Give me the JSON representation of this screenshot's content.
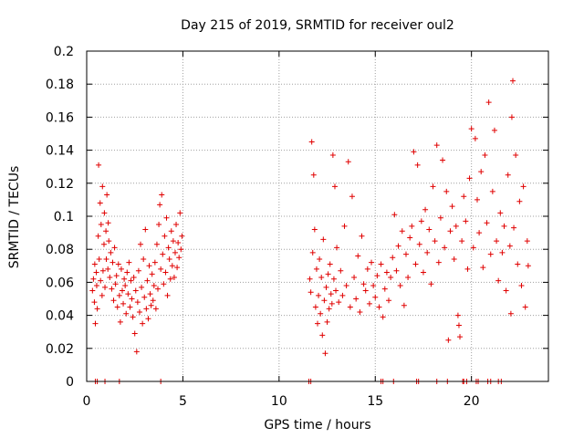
{
  "chart_data": {
    "type": "scatter",
    "title": "Day 215 of 2019, SRMTID for receiver oul2",
    "xlabel": "GPS time / hours",
    "ylabel": "SRMTID / TECUs",
    "xlim": [
      0,
      24
    ],
    "ylim": [
      0,
      0.2
    ],
    "xticks": [
      0,
      5,
      10,
      15,
      20
    ],
    "xtick_labels": [
      "0",
      "5",
      "10",
      "15",
      "20"
    ],
    "yticks": [
      0,
      0.02,
      0.04,
      0.06,
      0.08,
      0.1,
      0.12,
      0.14,
      0.16,
      0.18,
      0.2
    ],
    "ytick_labels": [
      "0",
      "0.02",
      "0.04",
      "0.06",
      "0.08",
      "0.1",
      "0.12",
      "0.14",
      "0.16",
      "0.18",
      "0.2"
    ],
    "grid": true,
    "marker": "+",
    "color": "#e00000",
    "series": [
      {
        "name": "SRMTID",
        "points": [
          [
            0.3,
            0.055
          ],
          [
            0.35,
            0.062
          ],
          [
            0.4,
            0.048
          ],
          [
            0.42,
            0.071
          ],
          [
            0.45,
            0.035
          ],
          [
            0.5,
            0.066
          ],
          [
            0.52,
            0.058
          ],
          [
            0.55,
            0.044
          ],
          [
            0.6,
            0.088
          ],
          [
            0.62,
            0.131
          ],
          [
            0.65,
            0.074
          ],
          [
            0.7,
            0.108
          ],
          [
            0.72,
            0.061
          ],
          [
            0.75,
            0.095
          ],
          [
            0.8,
            0.052
          ],
          [
            0.82,
            0.118
          ],
          [
            0.85,
            0.067
          ],
          [
            0.9,
            0.083
          ],
          [
            0.92,
            0.102
          ],
          [
            0.95,
            0.057
          ],
          [
            1.0,
            0.091
          ],
          [
            1.02,
            0.074
          ],
          [
            1.05,
            0.113
          ],
          [
            1.1,
            0.068
          ],
          [
            1.12,
            0.096
          ],
          [
            1.15,
            0.085
          ],
          [
            1.2,
            0.063
          ],
          [
            1.25,
            0.078
          ],
          [
            1.3,
            0.056
          ],
          [
            1.35,
            0.072
          ],
          [
            1.4,
            0.049
          ],
          [
            1.45,
            0.081
          ],
          [
            1.5,
            0.059
          ],
          [
            1.55,
            0.064
          ],
          [
            1.6,
            0.045
          ],
          [
            1.65,
            0.071
          ],
          [
            1.7,
            0.052
          ],
          [
            1.75,
            0.036
          ],
          [
            1.8,
            0.068
          ],
          [
            1.85,
            0.055
          ],
          [
            1.9,
            0.047
          ],
          [
            1.95,
            0.062
          ],
          [
            2.0,
            0.058
          ],
          [
            2.05,
            0.041
          ],
          [
            2.1,
            0.066
          ],
          [
            2.15,
            0.053
          ],
          [
            2.2,
            0.072
          ],
          [
            2.25,
            0.045
          ],
          [
            2.3,
            0.061
          ],
          [
            2.35,
            0.05
          ],
          [
            2.4,
            0.039
          ],
          [
            2.45,
            0.063
          ],
          [
            2.5,
            0.029
          ],
          [
            2.55,
            0.055
          ],
          [
            2.6,
            0.018
          ],
          [
            2.65,
            0.048
          ],
          [
            2.7,
            0.067
          ],
          [
            2.75,
            0.042
          ],
          [
            2.8,
            0.083
          ],
          [
            2.85,
            0.057
          ],
          [
            2.9,
            0.035
          ],
          [
            2.95,
            0.074
          ],
          [
            3.0,
            0.051
          ],
          [
            3.05,
            0.092
          ],
          [
            3.1,
            0.044
          ],
          [
            3.15,
            0.061
          ],
          [
            3.2,
            0.038
          ],
          [
            3.25,
            0.07
          ],
          [
            3.3,
            0.053
          ],
          [
            3.35,
            0.046
          ],
          [
            3.4,
            0.065
          ],
          [
            3.45,
            0.049
          ],
          [
            3.5,
            0.058
          ],
          [
            3.55,
            0.072
          ],
          [
            3.6,
            0.044
          ],
          [
            3.65,
            0.083
          ],
          [
            3.7,
            0.056
          ],
          [
            3.75,
            0.095
          ],
          [
            3.8,
            0.107
          ],
          [
            3.85,
            0.068
          ],
          [
            3.9,
            0.113
          ],
          [
            3.95,
            0.077
          ],
          [
            4.0,
            0.059
          ],
          [
            4.05,
            0.088
          ],
          [
            4.1,
            0.066
          ],
          [
            4.15,
            0.099
          ],
          [
            4.2,
            0.052
          ],
          [
            4.25,
            0.081
          ],
          [
            4.3,
            0.074
          ],
          [
            4.35,
            0.062
          ],
          [
            4.4,
            0.091
          ],
          [
            4.45,
            0.07
          ],
          [
            4.5,
            0.085
          ],
          [
            4.55,
            0.063
          ],
          [
            4.6,
            0.078
          ],
          [
            4.65,
            0.095
          ],
          [
            4.7,
            0.069
          ],
          [
            4.75,
            0.084
          ],
          [
            4.8,
            0.075
          ],
          [
            4.85,
            0.102
          ],
          [
            4.9,
            0.08
          ],
          [
            4.95,
            0.088
          ],
          [
            11.6,
            0.062
          ],
          [
            11.65,
            0.054
          ],
          [
            11.7,
            0.145
          ],
          [
            11.75,
            0.078
          ],
          [
            11.8,
            0.125
          ],
          [
            11.85,
            0.092
          ],
          [
            11.9,
            0.045
          ],
          [
            11.95,
            0.068
          ],
          [
            12.0,
            0.035
          ],
          [
            12.05,
            0.052
          ],
          [
            12.1,
            0.074
          ],
          [
            12.15,
            0.041
          ],
          [
            12.2,
            0.063
          ],
          [
            12.25,
            0.028
          ],
          [
            12.3,
            0.086
          ],
          [
            12.35,
            0.049
          ],
          [
            12.4,
            0.017
          ],
          [
            12.45,
            0.057
          ],
          [
            12.5,
            0.036
          ],
          [
            12.55,
            0.065
          ],
          [
            12.6,
            0.044
          ],
          [
            12.65,
            0.071
          ],
          [
            12.7,
            0.053
          ],
          [
            12.75,
            0.047
          ],
          [
            12.8,
            0.137
          ],
          [
            12.85,
            0.062
          ],
          [
            12.9,
            0.118
          ],
          [
            12.95,
            0.055
          ],
          [
            13.0,
            0.081
          ],
          [
            13.1,
            0.048
          ],
          [
            13.2,
            0.067
          ],
          [
            13.3,
            0.052
          ],
          [
            13.4,
            0.094
          ],
          [
            13.5,
            0.058
          ],
          [
            13.6,
            0.133
          ],
          [
            13.7,
            0.045
          ],
          [
            13.8,
            0.112
          ],
          [
            13.9,
            0.063
          ],
          [
            14.0,
            0.05
          ],
          [
            14.1,
            0.076
          ],
          [
            14.2,
            0.042
          ],
          [
            14.3,
            0.088
          ],
          [
            14.4,
            0.059
          ],
          [
            14.5,
            0.055
          ],
          [
            14.6,
            0.068
          ],
          [
            14.7,
            0.047
          ],
          [
            14.8,
            0.072
          ],
          [
            14.9,
            0.058
          ],
          [
            15.0,
            0.051
          ],
          [
            15.1,
            0.064
          ],
          [
            15.2,
            0.045
          ],
          [
            15.3,
            0.071
          ],
          [
            15.4,
            0.039
          ],
          [
            15.5,
            0.056
          ],
          [
            15.6,
            0.066
          ],
          [
            15.7,
            0.049
          ],
          [
            15.8,
            0.063
          ],
          [
            15.9,
            0.075
          ],
          [
            16.0,
            0.101
          ],
          [
            16.1,
            0.067
          ],
          [
            16.2,
            0.082
          ],
          [
            16.3,
            0.058
          ],
          [
            16.4,
            0.091
          ],
          [
            16.5,
            0.046
          ],
          [
            16.6,
            0.077
          ],
          [
            16.7,
            0.063
          ],
          [
            16.8,
            0.087
          ],
          [
            16.9,
            0.094
          ],
          [
            17.0,
            0.139
          ],
          [
            17.1,
            0.071
          ],
          [
            17.2,
            0.131
          ],
          [
            17.3,
            0.083
          ],
          [
            17.4,
            0.097
          ],
          [
            17.5,
            0.066
          ],
          [
            17.6,
            0.104
          ],
          [
            17.7,
            0.078
          ],
          [
            17.8,
            0.092
          ],
          [
            17.9,
            0.059
          ],
          [
            18.0,
            0.118
          ],
          [
            18.1,
            0.085
          ],
          [
            18.2,
            0.143
          ],
          [
            18.3,
            0.072
          ],
          [
            18.4,
            0.099
          ],
          [
            18.5,
            0.134
          ],
          [
            18.6,
            0.081
          ],
          [
            18.7,
            0.115
          ],
          [
            18.8,
            0.025
          ],
          [
            18.9,
            0.091
          ],
          [
            19.0,
            0.106
          ],
          [
            19.1,
            0.074
          ],
          [
            19.2,
            0.094
          ],
          [
            19.3,
            0.04
          ],
          [
            19.35,
            0.034
          ],
          [
            19.4,
            0.027
          ],
          [
            19.5,
            0.085
          ],
          [
            19.6,
            0.112
          ],
          [
            19.7,
            0.097
          ],
          [
            19.8,
            0.068
          ],
          [
            19.9,
            0.123
          ],
          [
            20.0,
            0.153
          ],
          [
            20.1,
            0.081
          ],
          [
            20.2,
            0.147
          ],
          [
            20.3,
            0.11
          ],
          [
            20.4,
            0.09
          ],
          [
            20.5,
            0.127
          ],
          [
            20.6,
            0.069
          ],
          [
            20.7,
            0.137
          ],
          [
            20.8,
            0.096
          ],
          [
            20.9,
            0.169
          ],
          [
            21.0,
            0.077
          ],
          [
            21.1,
            0.115
          ],
          [
            21.2,
            0.152
          ],
          [
            21.3,
            0.085
          ],
          [
            21.4,
            0.061
          ],
          [
            21.5,
            0.102
          ],
          [
            21.6,
            0.078
          ],
          [
            21.7,
            0.094
          ],
          [
            21.8,
            0.055
          ],
          [
            21.9,
            0.125
          ],
          [
            22.0,
            0.082
          ],
          [
            22.05,
            0.041
          ],
          [
            22.1,
            0.16
          ],
          [
            22.15,
            0.182
          ],
          [
            22.2,
            0.093
          ],
          [
            22.3,
            0.137
          ],
          [
            22.4,
            0.071
          ],
          [
            22.5,
            0.109
          ],
          [
            22.6,
            0.058
          ],
          [
            22.7,
            0.118
          ],
          [
            22.8,
            0.045
          ],
          [
            22.9,
            0.085
          ],
          [
            22.95,
            0.07
          ]
        ]
      },
      {
        "name": "zero markers",
        "points": [
          [
            0.45,
            0
          ],
          [
            0.55,
            0
          ],
          [
            0.95,
            0
          ],
          [
            1.7,
            0
          ],
          [
            3.85,
            0
          ],
          [
            11.55,
            0
          ],
          [
            11.65,
            0
          ],
          [
            15.3,
            0
          ],
          [
            15.4,
            0
          ],
          [
            15.95,
            0
          ],
          [
            17.15,
            0
          ],
          [
            17.25,
            0
          ],
          [
            18.2,
            0
          ],
          [
            18.75,
            0
          ],
          [
            19.55,
            0
          ],
          [
            19.6,
            0
          ],
          [
            19.75,
            0
          ],
          [
            20.25,
            0
          ],
          [
            20.35,
            0
          ],
          [
            20.85,
            0
          ],
          [
            21.0,
            0
          ],
          [
            21.4,
            0
          ],
          [
            21.55,
            0
          ]
        ]
      }
    ]
  }
}
